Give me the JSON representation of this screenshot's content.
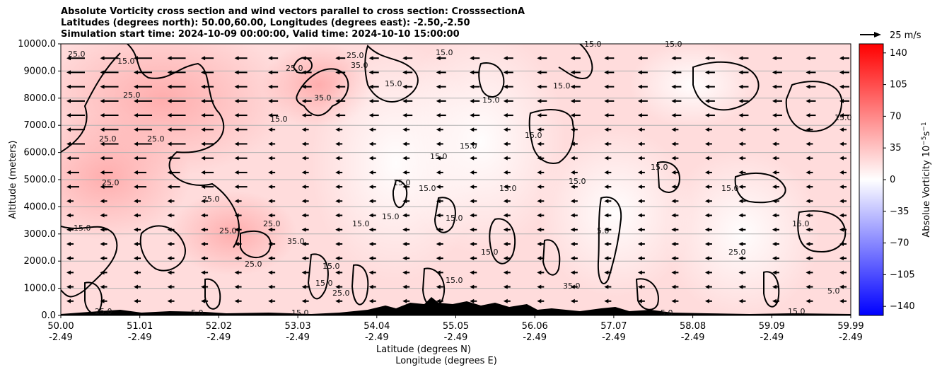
{
  "chart_data": {
    "type": "heatmap",
    "title_lines": [
      "Absolute Vorticity cross section and wind vectors parallel to cross section: CrosssectionA",
      "Latitudes (degrees north): 50.00,60.00, Longitudes (degrees east): -2.50,-2.50",
      "Simulation start time: 2024-10-09 00:00:00, Valid time: 2024-10-10 15:00:00"
    ],
    "ylabel": "Altitude (meters)",
    "xlabel_lat": "Latitude (degrees N)",
    "xlabel_lon": "Longitude (degrees E)",
    "ylim": [
      0,
      10000
    ],
    "y_ticks": [
      "0.0",
      "1000.0",
      "2000.0",
      "3000.0",
      "4000.0",
      "5000.0",
      "6000.0",
      "7000.0",
      "8000.0",
      "9000.0",
      "10000.0"
    ],
    "x_ticks_lat": [
      "50.00",
      "51.01",
      "52.02",
      "53.03",
      "54.04",
      "55.05",
      "56.06",
      "57.07",
      "58.08",
      "59.09",
      "59.99"
    ],
    "x_ticks_lon": [
      "-2.49",
      "-2.49",
      "-2.49",
      "-2.49",
      "-2.49",
      "-2.49",
      "-2.49",
      "-2.49",
      "-2.49",
      "-2.49",
      "-2.49"
    ],
    "colorbar_label": "Absolue Vorticity 10",
    "colorbar_label_sup": "−5",
    "colorbar_unit_s": "s",
    "colorbar_unit_sup": "−1",
    "colorbar_ticks": [
      "140",
      "105",
      "70",
      "35",
      "0",
      "−35",
      "−70",
      "−105",
      "−140"
    ],
    "colorbar_range": [
      -150,
      150
    ],
    "quiver_key_label": "25 m/s",
    "contour_labels": [
      "5.0",
      "15.0",
      "25.0",
      "35.0"
    ],
    "colors": {
      "positive": "#ff0000",
      "negative": "#0000ff",
      "neutral": "#ffffff",
      "terrain": "#000000"
    }
  }
}
